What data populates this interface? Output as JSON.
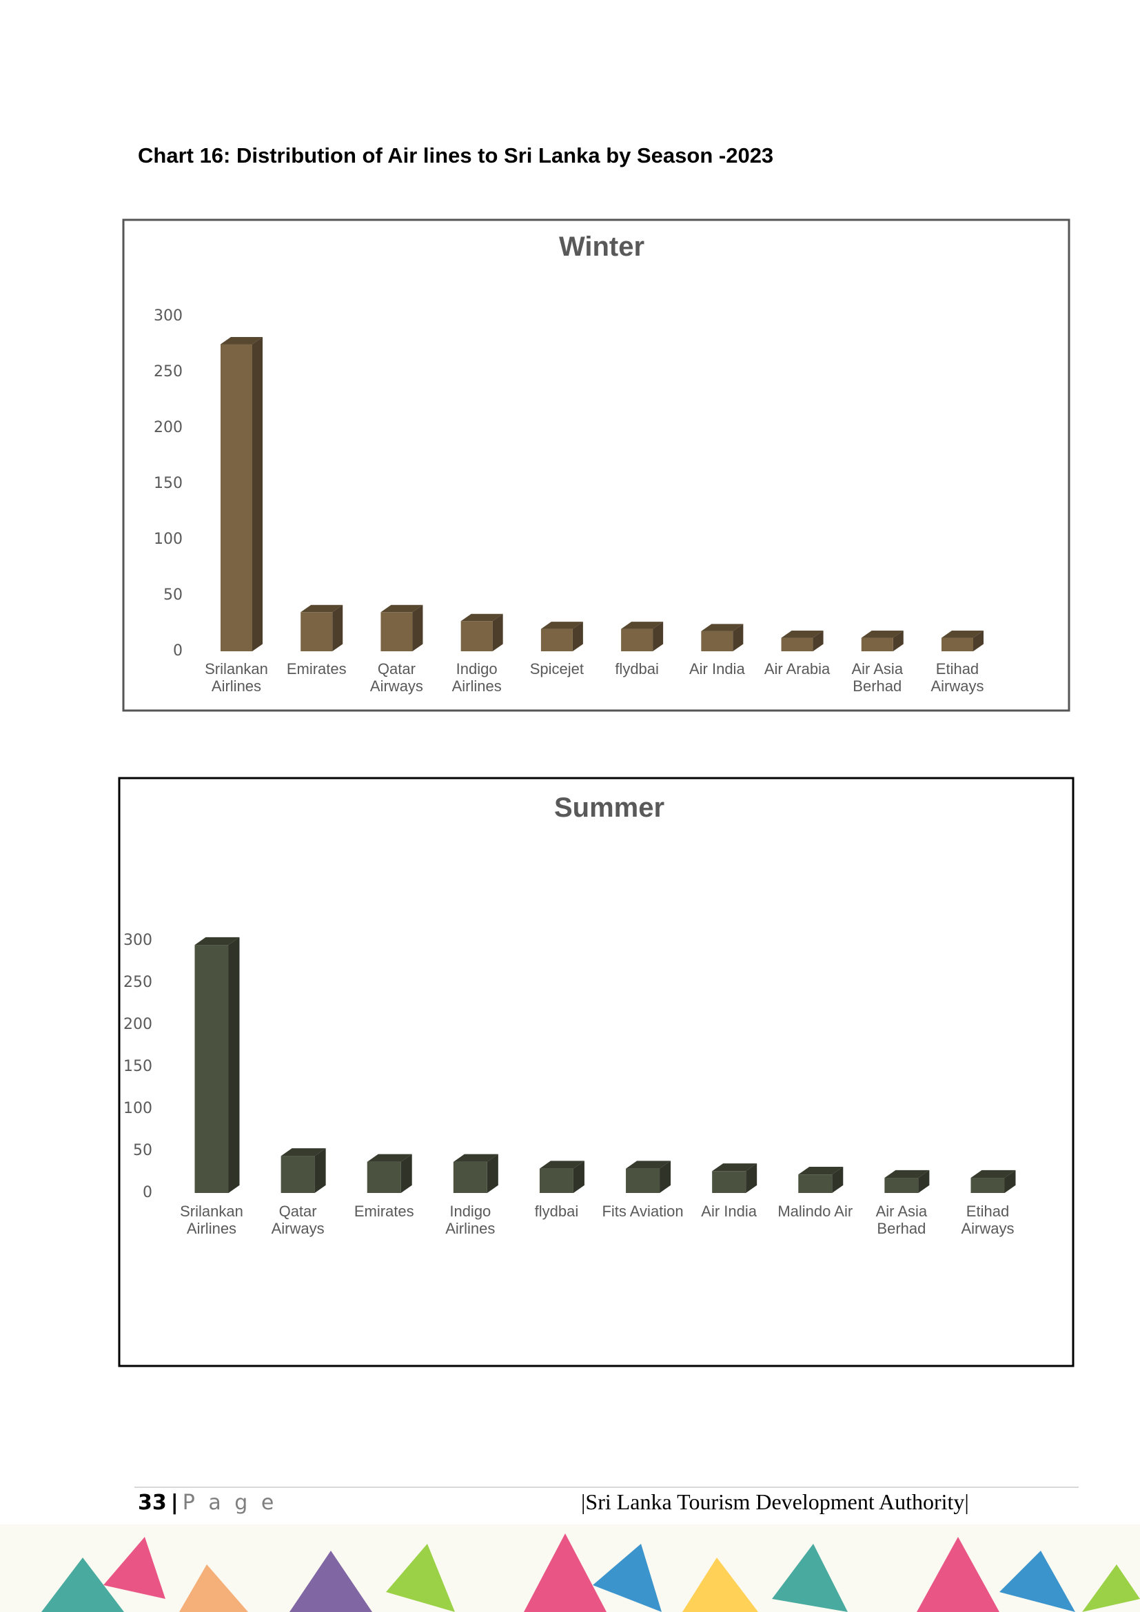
{
  "heading": "Chart 16: Distribution of Air lines to Sri Lanka by Season -2023",
  "chart_data": [
    {
      "type": "bar3d",
      "title": "Winter",
      "categories": [
        "Srilankan Airlines",
        "Emirates",
        "Qatar Airways",
        "Indigo Airlines",
        "Spicejet",
        "flydbai",
        "Air India",
        "Air Arabia",
        "Air Asia Berhad",
        "Etihad Airways"
      ],
      "values": [
        275,
        35,
        35,
        27,
        20,
        20,
        18,
        12,
        12,
        12
      ],
      "color": "#7a6443",
      "ylim": [
        0,
        300
      ],
      "yticks": [
        0,
        50,
        100,
        150,
        200,
        250,
        300
      ],
      "grid": false
    },
    {
      "type": "bar3d",
      "title": "Summer",
      "categories": [
        "Srilankan Airlines",
        "Qatar Airways",
        "Emirates",
        "Indigo Airlines",
        "flydbai",
        "Fits Aviation",
        "Air India",
        "Malindo Air",
        "Air Asia Berhad",
        "Etihad Airways"
      ],
      "values": [
        295,
        44,
        37,
        37,
        29,
        29,
        26,
        22,
        18,
        18
      ],
      "color": "#4b5240",
      "ylim": [
        0,
        300
      ],
      "yticks": [
        0,
        50,
        100,
        150,
        200,
        250,
        300
      ],
      "grid": false
    }
  ],
  "footer": {
    "page_number": "33",
    "separator": "|",
    "page_word": "P a g e",
    "organization": "|Sri Lanka Tourism Development Authority|"
  }
}
